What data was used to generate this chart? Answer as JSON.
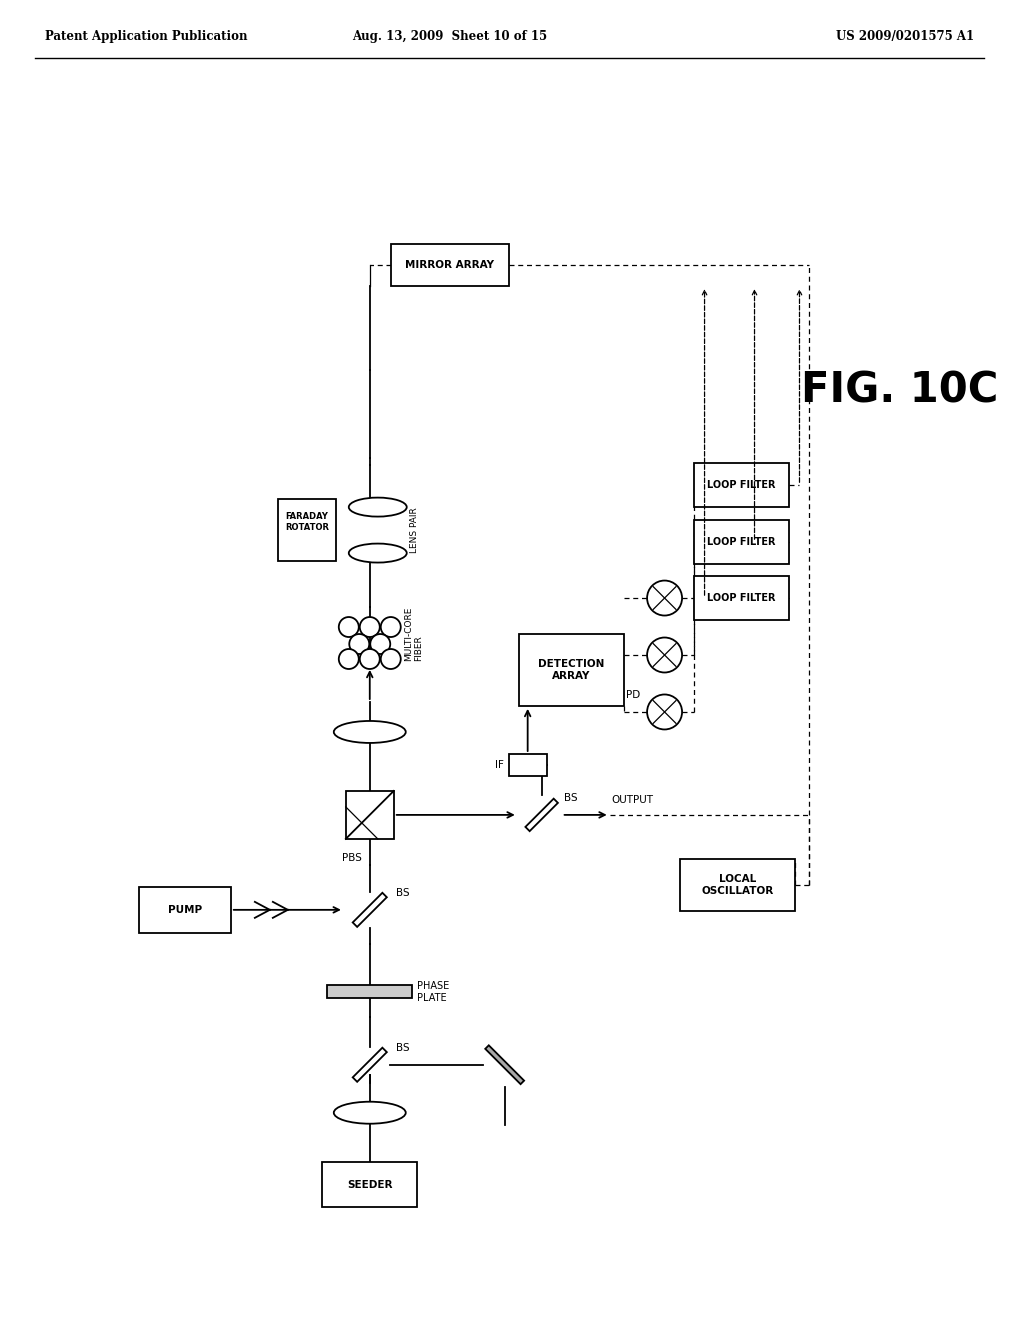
{
  "bg_color": "#ffffff",
  "header_left": "Patent Application Publication",
  "header_mid": "Aug. 13, 2009  Sheet 10 of 15",
  "header_right": "US 2009/0201575 A1",
  "fig_label": "FIG. 10C"
}
